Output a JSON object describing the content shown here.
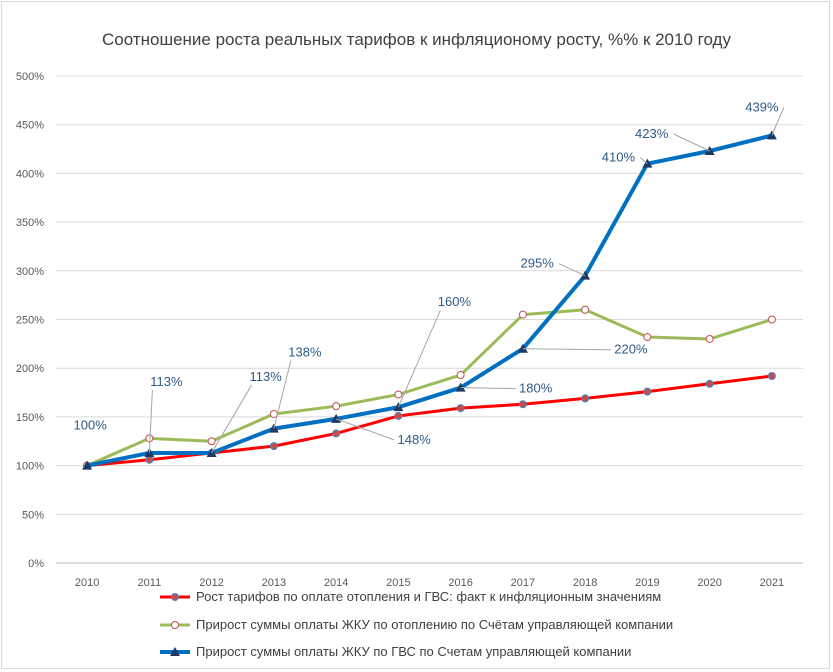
{
  "chart_data": {
    "type": "line",
    "title": "Соотношение роста реальных тарифов к инфляционому росту, %% к 2010 году",
    "categories": [
      "2010",
      "2011",
      "2012",
      "2013",
      "2014",
      "2015",
      "2016",
      "2017",
      "2018",
      "2019",
      "2020",
      "2021"
    ],
    "ylim": [
      0,
      500
    ],
    "yticks": [
      0,
      50,
      100,
      150,
      200,
      250,
      300,
      350,
      400,
      450,
      500
    ],
    "ytick_labels": [
      "0%",
      "50%",
      "100%",
      "150%",
      "200%",
      "250%",
      "300%",
      "350%",
      "400%",
      "450%",
      "500%"
    ],
    "grid": true,
    "legend_position": "bottom",
    "series": [
      {
        "name": "Рост тарифов по оплате отопления и ГВС: факт к инфляционным значениям",
        "color": "#ff0000",
        "marker": "circle-filled",
        "values": [
          100,
          106,
          113,
          120,
          133,
          151,
          159,
          163,
          169,
          176,
          184,
          192
        ]
      },
      {
        "name": "Прирост суммы оплаты ЖКУ по отоплению по Счётам управляющей компании",
        "color": "#9bbb59",
        "marker": "circle-open",
        "values": [
          100,
          128,
          125,
          153,
          161,
          173,
          193,
          255,
          260,
          232,
          230,
          250
        ]
      },
      {
        "name": "Прирост суммы оплаты ЖКУ по ГВС по Счетам управляющей компании",
        "color": "#0070c0",
        "marker": "triangle",
        "values": [
          100,
          113,
          113,
          138,
          148,
          160,
          180,
          220,
          295,
          410,
          423,
          439
        ]
      }
    ],
    "data_labels": [
      {
        "series": 2,
        "index": 0,
        "text": "100%"
      },
      {
        "series": 2,
        "index": 1,
        "text": "113%"
      },
      {
        "series": 2,
        "index": 2,
        "text": "113%"
      },
      {
        "series": 2,
        "index": 3,
        "text": "138%"
      },
      {
        "series": 2,
        "index": 4,
        "text": "148%"
      },
      {
        "series": 2,
        "index": 5,
        "text": "160%"
      },
      {
        "series": 2,
        "index": 6,
        "text": "180%"
      },
      {
        "series": 2,
        "index": 7,
        "text": "220%"
      },
      {
        "series": 2,
        "index": 8,
        "text": "295%"
      },
      {
        "series": 2,
        "index": 9,
        "text": "410%"
      },
      {
        "series": 2,
        "index": 10,
        "text": "423%"
      },
      {
        "series": 2,
        "index": 11,
        "text": "439%"
      }
    ]
  }
}
